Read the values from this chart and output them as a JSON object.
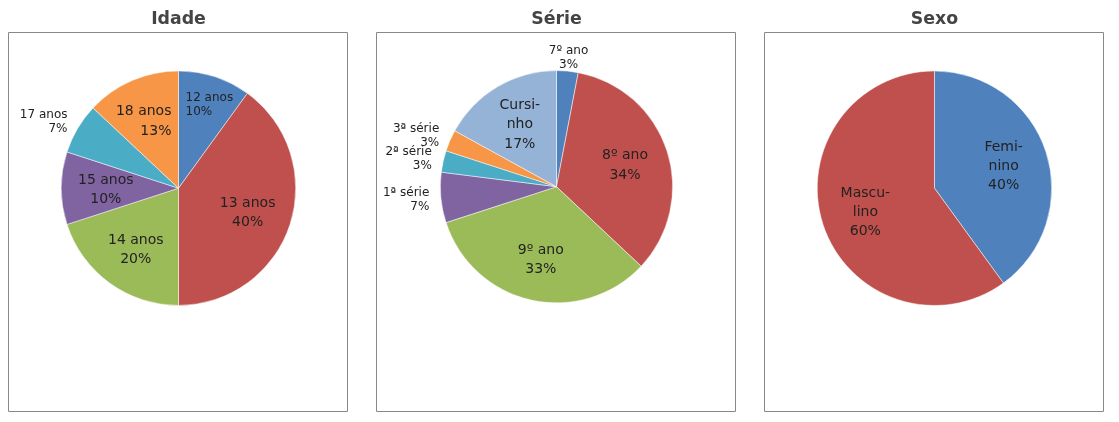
{
  "chart_data": [
    {
      "type": "pie",
      "title": "Idade",
      "categories": [
        "12 anos",
        "13 anos",
        "14 anos",
        "15 anos",
        "17 anos",
        "18 anos"
      ],
      "values": [
        10,
        40,
        20,
        10,
        7,
        13
      ],
      "colors": [
        "#4f81bd",
        "#c0504d",
        "#9bbb59",
        "#8064a2",
        "#4bacc6",
        "#f79646"
      ],
      "value_labels": [
        "10%",
        "40%",
        "20%",
        "10%",
        "7%",
        "13%"
      ]
    },
    {
      "type": "pie",
      "title": "Série",
      "categories": [
        "7º ano",
        "8º ano",
        "9º ano",
        "1ª série",
        "2ª série",
        "3ª série",
        "Cursi-\nnho"
      ],
      "values": [
        3,
        34,
        33,
        7,
        3,
        3,
        17
      ],
      "colors": [
        "#4f81bd",
        "#c0504d",
        "#9bbb59",
        "#8064a2",
        "#4bacc6",
        "#f79646",
        "#95b3d7"
      ],
      "value_labels": [
        "3%",
        "34%",
        "33%",
        "7%",
        "3%",
        "3%",
        "17%"
      ]
    },
    {
      "type": "pie",
      "title": "Sexo",
      "categories": [
        "Femi-\nnino",
        "Mascu-\nlino"
      ],
      "values": [
        40,
        60
      ],
      "colors": [
        "#4f81bd",
        "#c0504d"
      ],
      "value_labels": [
        "40%",
        "60%"
      ]
    }
  ]
}
